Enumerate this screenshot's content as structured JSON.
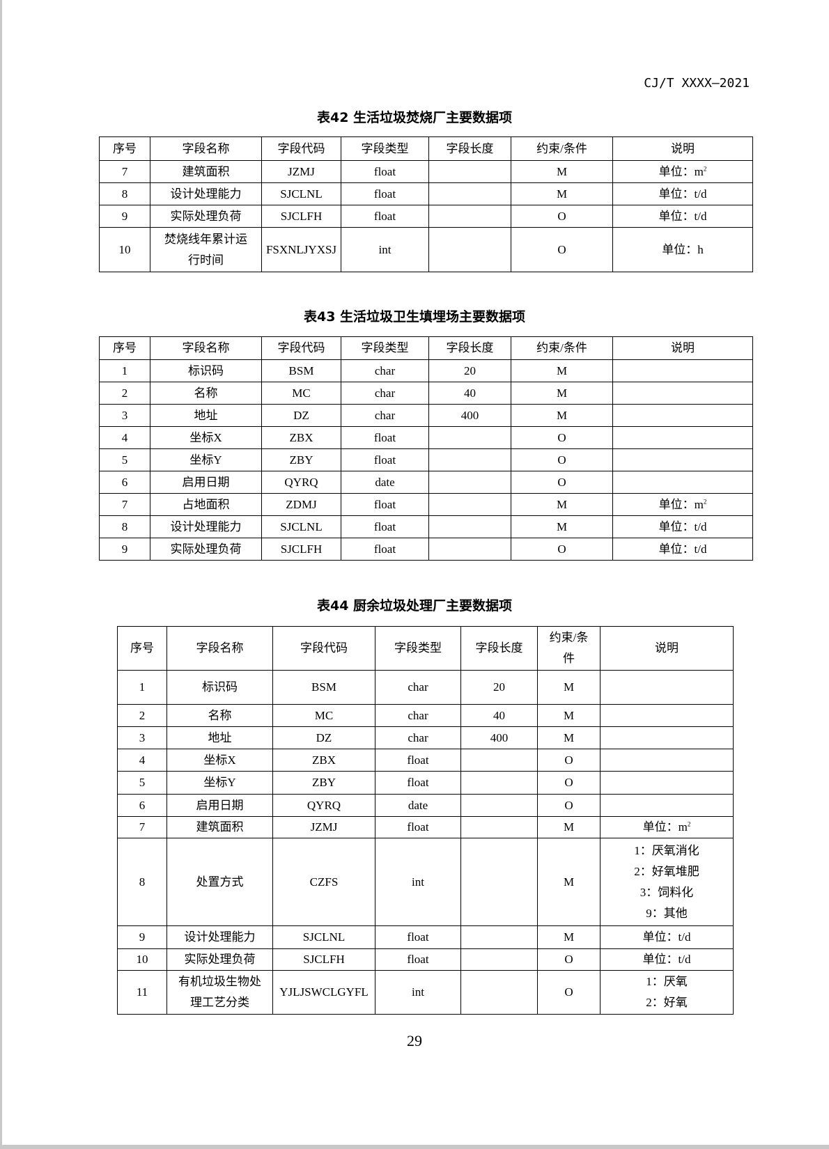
{
  "header": {
    "standard_code": "CJ/T  XXXX—2021"
  },
  "tables": [
    {
      "title": "表42  生活垃圾焚烧厂主要数据项",
      "columns": [
        "序号",
        "字段名称",
        "字段代码",
        "字段类型",
        "字段长度",
        "约束/条件",
        "说明"
      ],
      "rows": [
        [
          "7",
          "建筑面积",
          "JZMJ",
          "float",
          "",
          "M",
          "单位：m²"
        ],
        [
          "8",
          "设计处理能力",
          "SJCLNL",
          "float",
          "",
          "M",
          "单位：t/d"
        ],
        [
          "9",
          "实际处理负荷",
          "SJCLFH",
          "float",
          "",
          "O",
          "单位：t/d"
        ],
        [
          "10",
          "焚烧线年累计运\n行时间",
          "FSXNLJYXSJ",
          "int",
          "",
          "O",
          "单位：h"
        ]
      ]
    },
    {
      "title": "表43  生活垃圾卫生填埋场主要数据项",
      "columns": [
        "序号",
        "字段名称",
        "字段代码",
        "字段类型",
        "字段长度",
        "约束/条件",
        "说明"
      ],
      "rows": [
        [
          "1",
          "标识码",
          "BSM",
          "char",
          "20",
          "M",
          ""
        ],
        [
          "2",
          "名称",
          "MC",
          "char",
          "40",
          "M",
          ""
        ],
        [
          "3",
          "地址",
          "DZ",
          "char",
          "400",
          "M",
          ""
        ],
        [
          "4",
          "坐标X",
          "ZBX",
          "float",
          "",
          "O",
          ""
        ],
        [
          "5",
          "坐标Y",
          "ZBY",
          "float",
          "",
          "O",
          ""
        ],
        [
          "6",
          "启用日期",
          "QYRQ",
          "date",
          "",
          "O",
          ""
        ],
        [
          "7",
          "占地面积",
          "ZDMJ",
          "float",
          "",
          "M",
          "单位：m²"
        ],
        [
          "8",
          "设计处理能力",
          "SJCLNL",
          "float",
          "",
          "M",
          "单位：t/d"
        ],
        [
          "9",
          "实际处理负荷",
          "SJCLFH",
          "float",
          "",
          "O",
          "单位：t/d"
        ]
      ]
    },
    {
      "title": "表44  厨余垃圾处理厂主要数据项",
      "columns": [
        "序号",
        "字段名称",
        "字段代码",
        "字段类型",
        "字段长度",
        "约束/条\n件",
        "说明"
      ],
      "rows": [
        [
          "1",
          "标识码",
          "BSM",
          "char",
          "20",
          "M",
          ""
        ],
        [
          "2",
          "名称",
          "MC",
          "char",
          "40",
          "M",
          ""
        ],
        [
          "3",
          "地址",
          "DZ",
          "char",
          "400",
          "M",
          ""
        ],
        [
          "4",
          "坐标X",
          "ZBX",
          "float",
          "",
          "O",
          ""
        ],
        [
          "5",
          "坐标Y",
          "ZBY",
          "float",
          "",
          "O",
          ""
        ],
        [
          "6",
          "启用日期",
          "QYRQ",
          "date",
          "",
          "O",
          ""
        ],
        [
          "7",
          "建筑面积",
          "JZMJ",
          "float",
          "",
          "M",
          "单位：m²"
        ],
        [
          "8",
          "处置方式",
          "CZFS",
          "int",
          "",
          "M",
          "1：厌氧消化\n2：好氧堆肥\n3：饲料化\n9：其他"
        ],
        [
          "9",
          "设计处理能力",
          "SJCLNL",
          "float",
          "",
          "M",
          "单位：t/d"
        ],
        [
          "10",
          "实际处理负荷",
          "SJCLFH",
          "float",
          "",
          "O",
          "单位：t/d"
        ],
        [
          "11",
          "有机垃圾生物处\n理工艺分类",
          "YJLJSWCLGYFL",
          "int",
          "",
          "O",
          "1：厌氧\n2：好氧"
        ]
      ]
    }
  ],
  "footer": {
    "page_number": "29"
  }
}
